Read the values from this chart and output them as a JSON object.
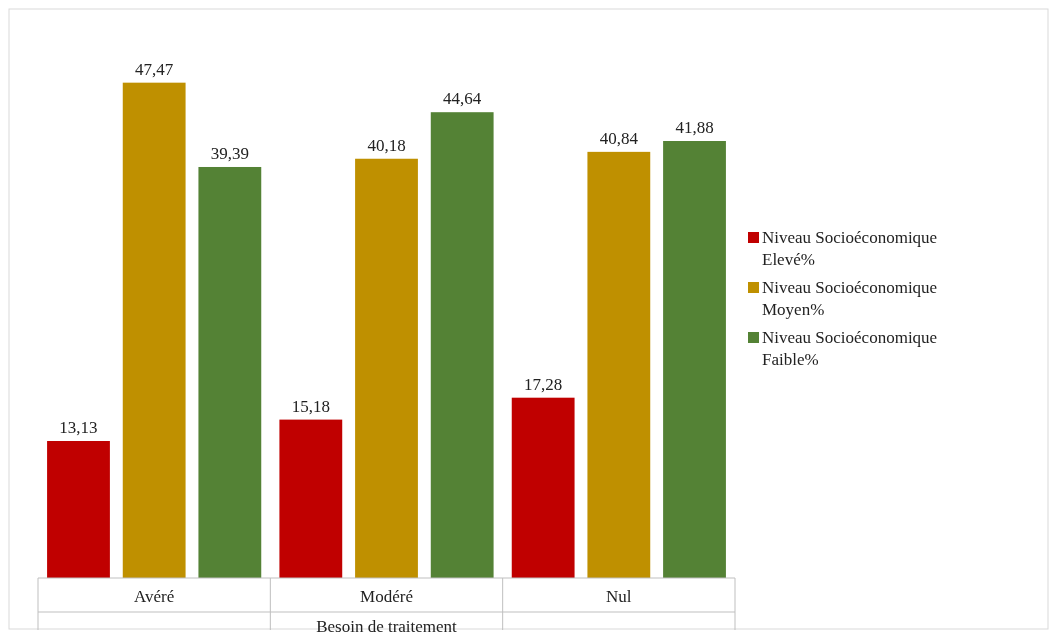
{
  "chart_data": {
    "type": "bar",
    "xlabel": "Besoin de traitement",
    "categories": [
      "Avéré",
      "Modéré",
      "Nul"
    ],
    "legend": "right",
    "series": [
      {
        "name": "Niveau Socioéconomique Elevé%",
        "color": "#c00000",
        "values": [
          13.13,
          15.18,
          17.28
        ],
        "value_labels": [
          "13,13",
          "15,18",
          "17,28"
        ]
      },
      {
        "name": "Niveau Socioéconomique Moyen%",
        "color": "#bf9000",
        "values": [
          47.47,
          40.18,
          40.84
        ],
        "value_labels": [
          "47,47",
          "40,18",
          "40,84"
        ]
      },
      {
        "name": "Niveau Socioéconomique Faible%",
        "color": "#548235",
        "values": [
          39.39,
          44.64,
          41.88
        ],
        "value_labels": [
          "39,39",
          "44,64",
          "41,88"
        ]
      }
    ]
  }
}
